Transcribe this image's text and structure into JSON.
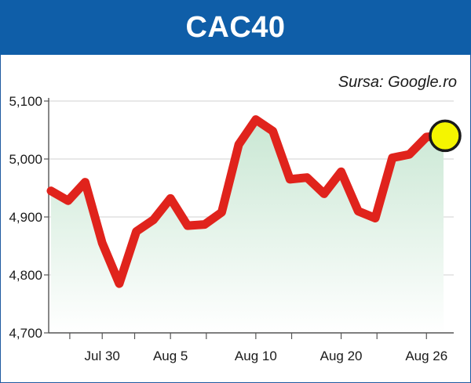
{
  "header": {
    "title": "CAC40"
  },
  "source_label": "Sursa: Google.ro",
  "colors": {
    "header_bg": "#0f5ea8",
    "line": "#e0231c",
    "area_top": "#c9e7d3",
    "marker_fill": "#f5f500",
    "marker_stroke": "#1a1a1a",
    "grid": "#d9d9d9"
  },
  "chart_data": {
    "type": "line",
    "title": "CAC40",
    "xlabel": "",
    "ylabel": "",
    "ylim": [
      4700,
      5100
    ],
    "yticks": [
      4700,
      4800,
      4900,
      5000,
      5100
    ],
    "ytick_labels": [
      "4,700",
      "4,800",
      "4,900",
      "5,000",
      "5,100"
    ],
    "xlim": [
      0,
      23
    ],
    "xticks": [
      {
        "x": 3,
        "label": "Jul 30"
      },
      {
        "x": 7,
        "label": "Aug 5"
      },
      {
        "x": 12,
        "label": "Aug 10"
      },
      {
        "x": 17,
        "label": "Aug 20"
      },
      {
        "x": 22,
        "label": "Aug 26"
      }
    ],
    "grid": true,
    "area_fill": true,
    "end_marker": true,
    "series": [
      {
        "x": [
          0,
          1,
          2,
          3,
          4,
          5,
          6,
          7,
          8,
          9,
          10,
          11,
          12,
          13,
          14,
          15,
          16,
          17,
          18,
          19,
          20,
          21,
          22,
          23
        ],
        "values": [
          4945,
          4928,
          4960,
          4855,
          4785,
          4875,
          4895,
          4932,
          4885,
          4887,
          4908,
          5025,
          5068,
          5048,
          4965,
          4968,
          4940,
          4978,
          4910,
          4898,
          5002,
          5008,
          5038,
          5040
        ]
      }
    ]
  }
}
